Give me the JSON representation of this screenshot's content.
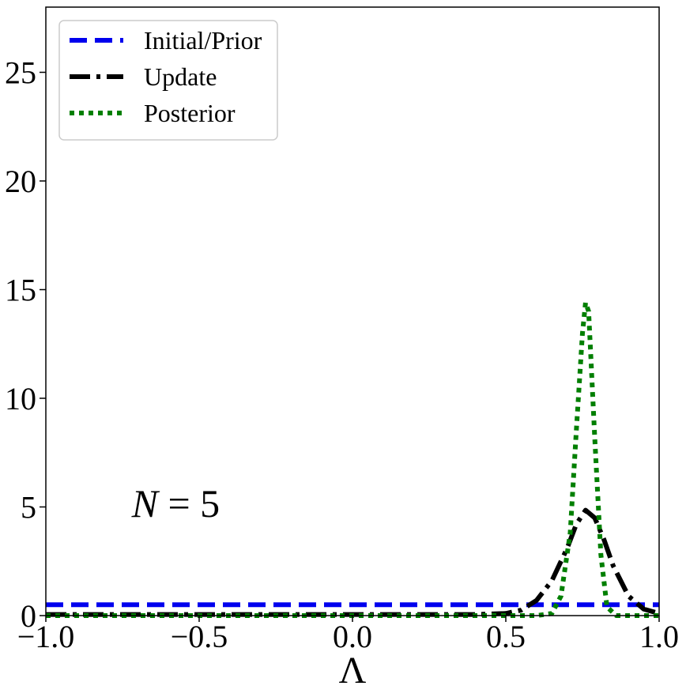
{
  "chart_data": {
    "type": "line",
    "title": "",
    "xlabel": "Λ",
    "ylabel": "",
    "xlim": [
      -1.0,
      1.0
    ],
    "ylim": [
      0,
      28
    ],
    "xticks": [
      -1.0,
      -0.5,
      0.0,
      0.5,
      1.0
    ],
    "xtick_labels": [
      "−1.0",
      "−0.5",
      "0.0",
      "0.5",
      "1.0"
    ],
    "yticks": [
      0,
      5,
      10,
      15,
      20,
      25
    ],
    "ytick_labels": [
      "0",
      "5",
      "10",
      "15",
      "20",
      "25"
    ],
    "grid": false,
    "legend_position": "top-left",
    "annotation": {
      "text_italic": "N",
      "text_rest": " = 5",
      "x": -0.72,
      "y": 5.2
    },
    "series": [
      {
        "name": "Initial/Prior",
        "style": "dashed",
        "color": "#0000ee",
        "x": [
          -1.0,
          1.0
        ],
        "y": [
          0.5,
          0.5
        ]
      },
      {
        "name": "Update",
        "style": "dashdot",
        "color": "#000000",
        "x": [
          -1.0,
          0.4,
          0.5,
          0.55,
          0.6,
          0.65,
          0.7,
          0.73,
          0.76,
          0.79,
          0.82,
          0.85,
          0.9,
          0.95,
          1.0
        ],
        "y": [
          0.05,
          0.05,
          0.1,
          0.25,
          0.7,
          1.6,
          3.1,
          4.2,
          4.85,
          4.5,
          3.5,
          2.3,
          0.9,
          0.3,
          0.1
        ]
      },
      {
        "name": "Posterior",
        "style": "dotted",
        "color": "#007f00",
        "x": [
          -1.0,
          0.6,
          0.65,
          0.68,
          0.71,
          0.73,
          0.75,
          0.76,
          0.77,
          0.79,
          0.81,
          0.83,
          0.86,
          1.0
        ],
        "y": [
          0.0,
          0.0,
          0.1,
          0.9,
          3.8,
          8.5,
          13.0,
          14.4,
          14.0,
          8.2,
          2.8,
          0.4,
          0.0,
          0.0
        ]
      }
    ]
  }
}
